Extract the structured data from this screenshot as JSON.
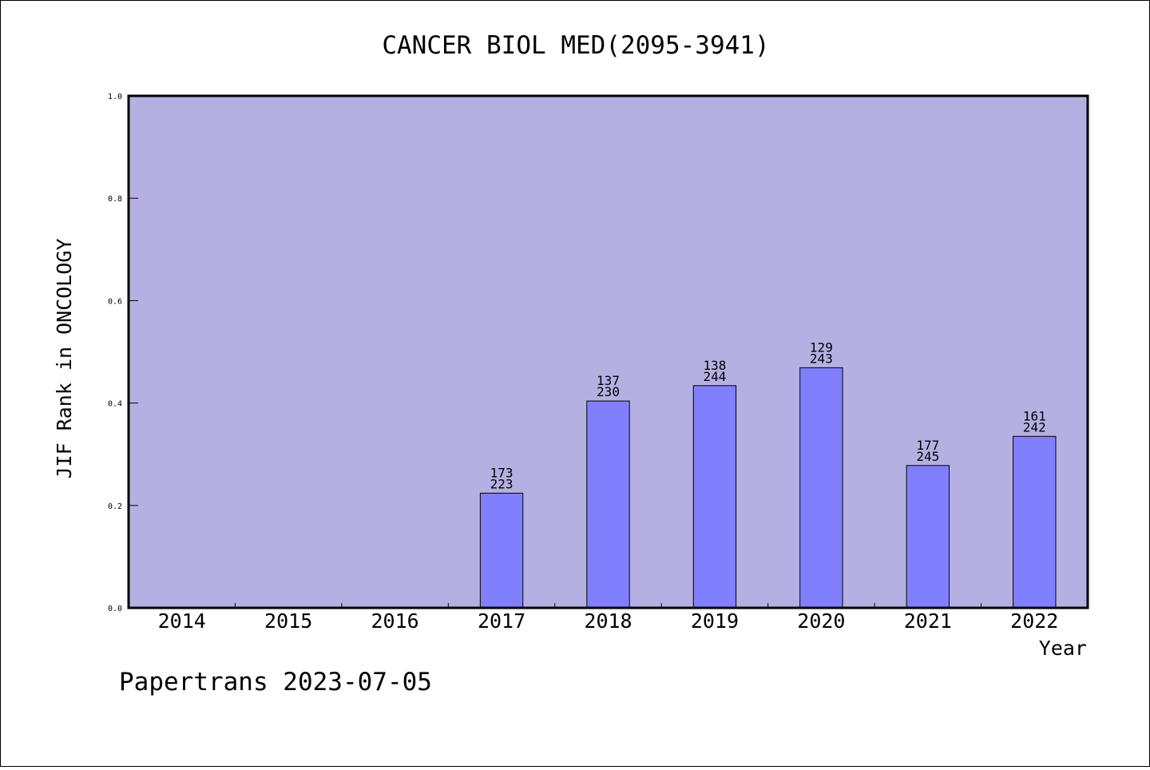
{
  "chart_data": {
    "type": "bar",
    "title": "CANCER BIOL MED(2095-3941)",
    "xlabel": "Year",
    "ylabel": "JIF Rank in ONCOLOGY",
    "ylim": [
      0,
      1
    ],
    "yticks": [
      "0.0",
      "0.2",
      "0.4",
      "0.6",
      "0.8",
      "1.0"
    ],
    "ytick_values": [
      0,
      0.2,
      0.4,
      0.6,
      0.8,
      1.0
    ],
    "categories": [
      "2014",
      "2015",
      "2016",
      "2017",
      "2018",
      "2019",
      "2020",
      "2021",
      "2022"
    ],
    "values": [
      null,
      null,
      null,
      0.224,
      0.404,
      0.434,
      0.469,
      0.278,
      0.335
    ],
    "rank": [
      null,
      null,
      null,
      "173",
      "137",
      "138",
      "129",
      "177",
      "161"
    ],
    "total": [
      null,
      null,
      null,
      "223",
      "230",
      "244",
      "243",
      "245",
      "242"
    ],
    "grid": false,
    "legend": "none",
    "colors": {
      "background": "#b5b0e2",
      "bar": "#8080ff",
      "axis": "#000000"
    }
  },
  "footer": "Papertrans 2023-07-05"
}
